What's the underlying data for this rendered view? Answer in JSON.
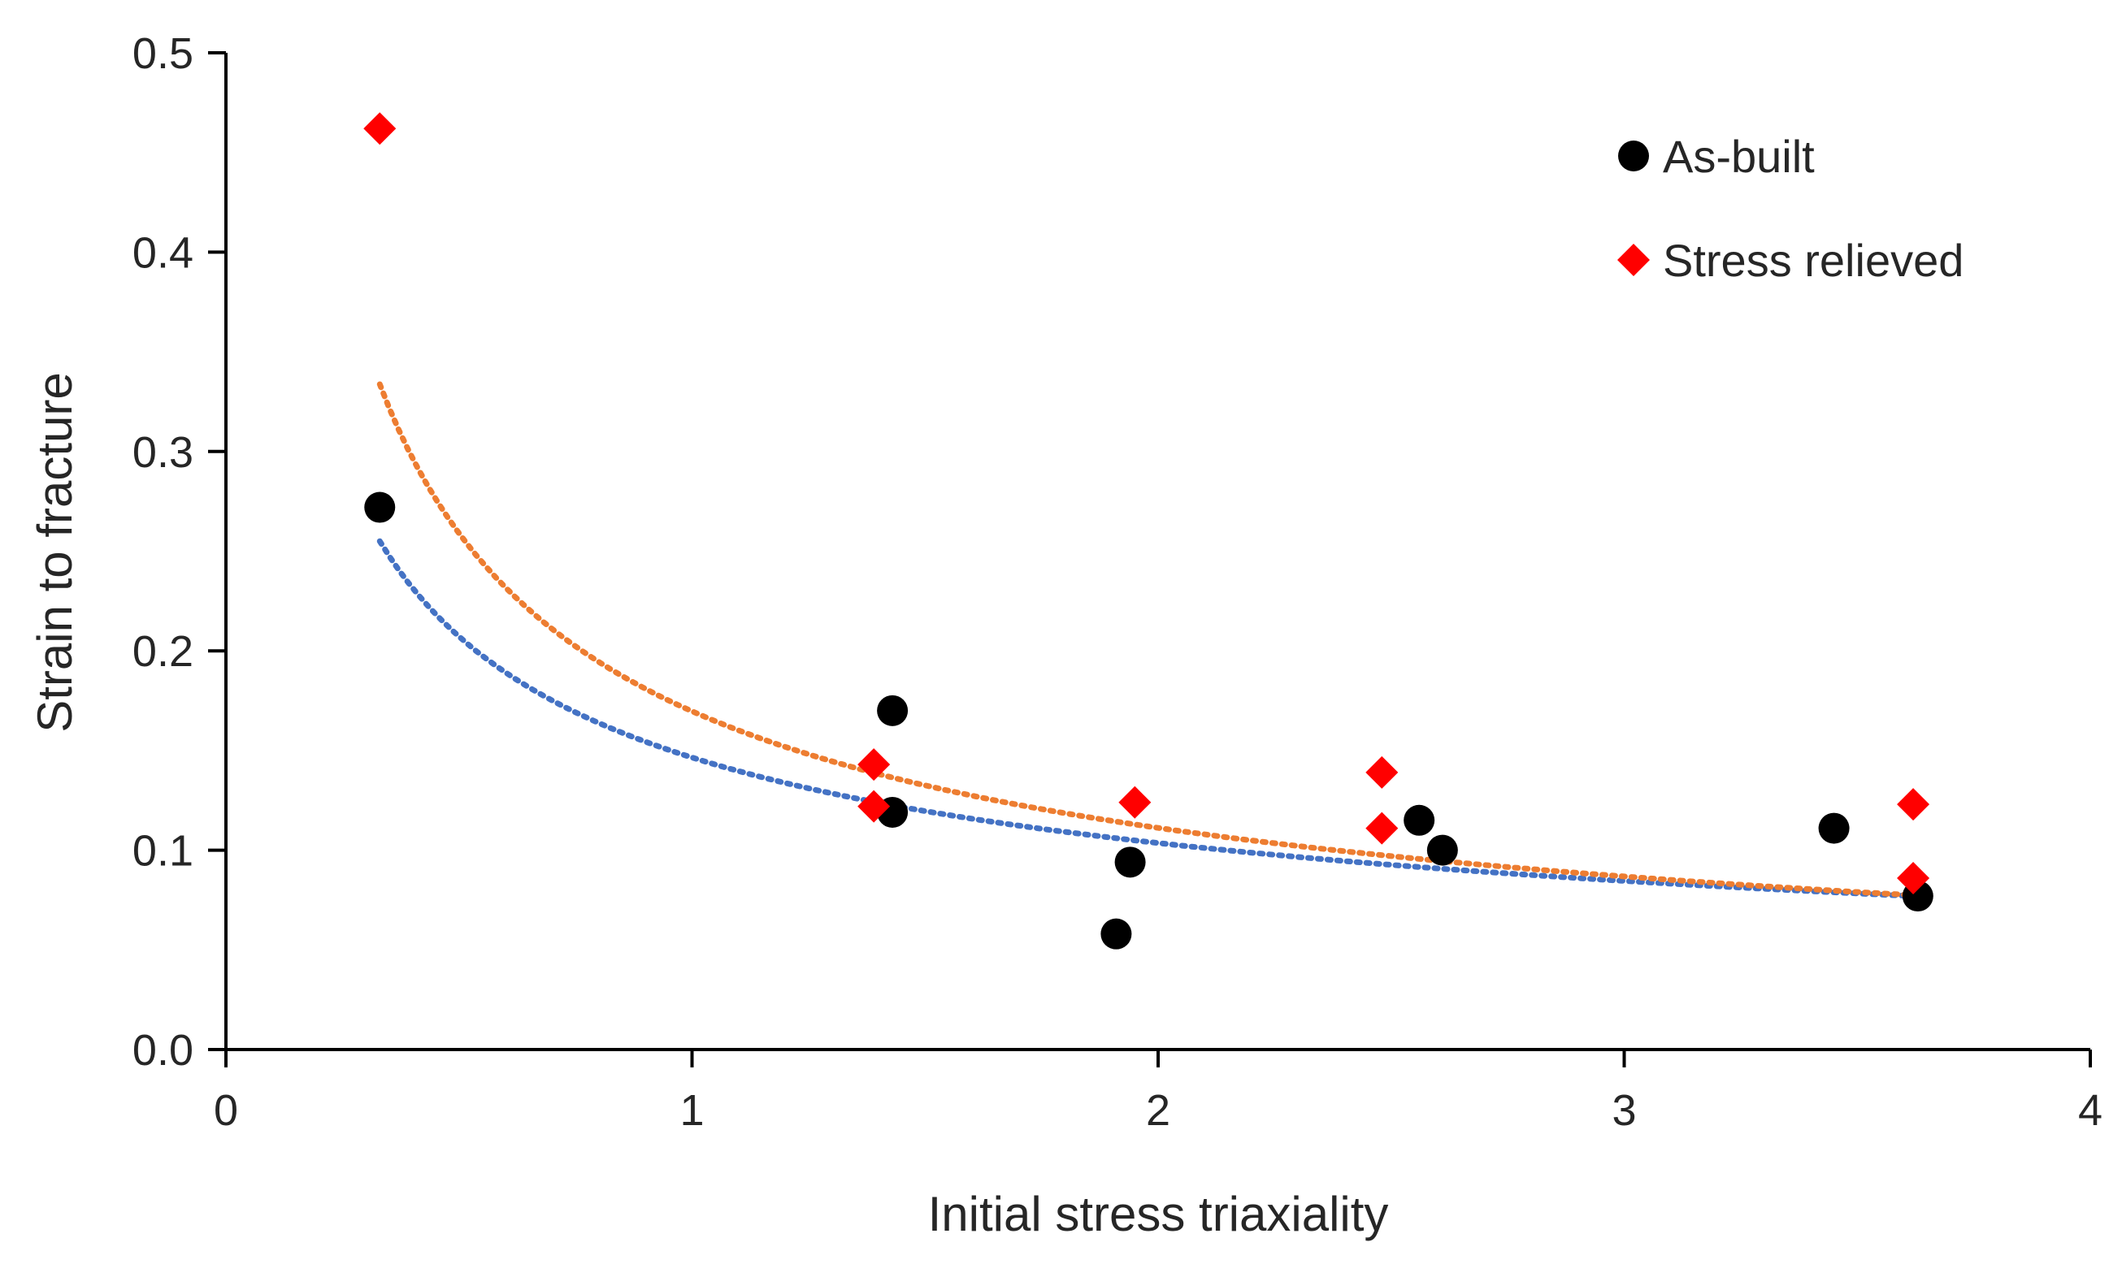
{
  "chart_data": {
    "type": "scatter",
    "title": "",
    "xlabel": "Initial stress triaxiality",
    "ylabel": "Strain to fracture",
    "xlim": [
      0,
      4
    ],
    "ylim": [
      0,
      0.5
    ],
    "xticks": [
      0,
      1,
      2,
      3,
      4
    ],
    "xtick_labels": [
      "0",
      "1",
      "2",
      "3",
      "4"
    ],
    "yticks": [
      0,
      0.1,
      0.2,
      0.3,
      0.4,
      0.5
    ],
    "ytick_labels": [
      "0.0",
      "0.1",
      "0.2",
      "0.3",
      "0.4",
      "0.5"
    ],
    "grid": false,
    "legend_position": "top-right",
    "series": [
      {
        "name": "As-built",
        "marker": "circle",
        "color": "#000000",
        "points": [
          {
            "x": 0.33,
            "y": 0.272
          },
          {
            "x": 1.43,
            "y": 0.17
          },
          {
            "x": 1.43,
            "y": 0.119
          },
          {
            "x": 1.91,
            "y": 0.058
          },
          {
            "x": 1.94,
            "y": 0.094
          },
          {
            "x": 2.56,
            "y": 0.115
          },
          {
            "x": 2.61,
            "y": 0.1
          },
          {
            "x": 3.45,
            "y": 0.111
          },
          {
            "x": 3.63,
            "y": 0.077
          }
        ],
        "trendline": {
          "type": "power",
          "color": "#4472c4",
          "x_start": 0.33,
          "x_end": 3.63,
          "a": 0.1465,
          "b": -0.5
        }
      },
      {
        "name": "Stress relieved",
        "marker": "diamond",
        "color": "#ff0000",
        "points": [
          {
            "x": 0.33,
            "y": 0.462
          },
          {
            "x": 1.39,
            "y": 0.143
          },
          {
            "x": 1.39,
            "y": 0.122
          },
          {
            "x": 1.95,
            "y": 0.124
          },
          {
            "x": 2.48,
            "y": 0.139
          },
          {
            "x": 2.48,
            "y": 0.111
          },
          {
            "x": 3.62,
            "y": 0.123
          },
          {
            "x": 3.62,
            "y": 0.086
          }
        ],
        "trendline": {
          "type": "power",
          "color": "#ed7d31",
          "x_start": 0.33,
          "x_end": 3.63,
          "a": 0.1697,
          "b": -0.61
        }
      }
    ]
  }
}
